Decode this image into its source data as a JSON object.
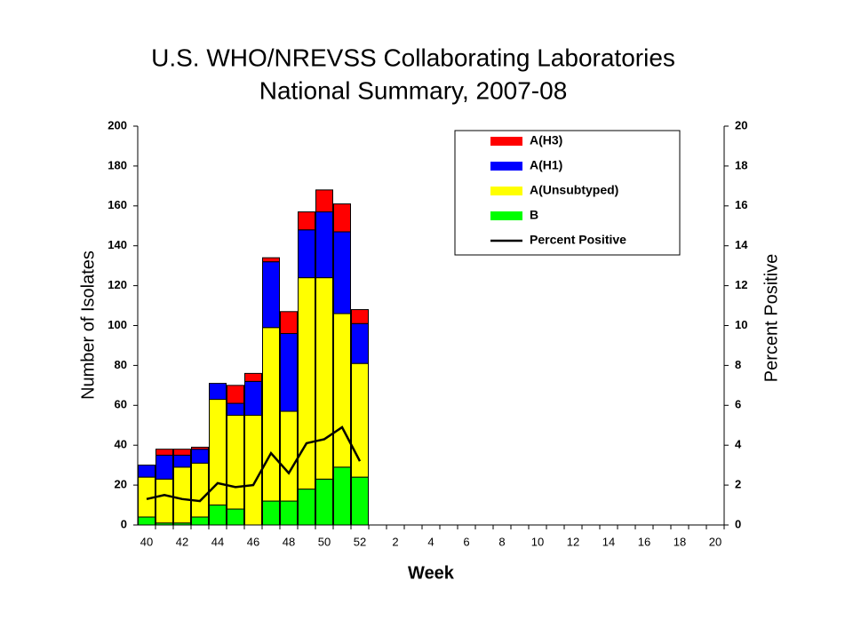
{
  "chart_data": {
    "type": "stacked-bar-line",
    "title": [
      "U.S. WHO/NREVSS Collaborating Laboratories",
      "National Summary, 2007-08"
    ],
    "x_label": "Week",
    "y_label": "Number of Isolates",
    "y2_label": "Percent Positive",
    "categories": [
      "40",
      null,
      "42",
      null,
      "44",
      null,
      "46",
      null,
      "48",
      null,
      "50",
      null,
      "52",
      null,
      "2",
      null,
      "4",
      null,
      "6",
      null,
      "8",
      null,
      "10",
      null,
      "12",
      null,
      "14",
      null,
      "16",
      null,
      "18",
      null,
      "20"
    ],
    "ylim": [
      0,
      200
    ],
    "yticks": [
      0,
      20,
      40,
      60,
      80,
      100,
      120,
      140,
      160,
      180,
      200
    ],
    "y2lim": [
      0,
      20
    ],
    "y2ticks": [
      0,
      2,
      4,
      6,
      8,
      10,
      12,
      14,
      16,
      18,
      20
    ],
    "series": [
      {
        "name": "A(H3)",
        "color": "#ff0000",
        "values": [
          0,
          3,
          3,
          1,
          0,
          9,
          4,
          2,
          11,
          9,
          11,
          14,
          7,
          null,
          null,
          null,
          null,
          null,
          null,
          null,
          null,
          null,
          null,
          null,
          null,
          null,
          null,
          null,
          null,
          null,
          null,
          null,
          null
        ]
      },
      {
        "name": "A(H1)",
        "color": "#0000ff",
        "values": [
          6,
          12,
          6,
          7,
          8,
          6,
          17,
          33,
          39,
          24,
          33,
          41,
          20,
          null,
          null,
          null,
          null,
          null,
          null,
          null,
          null,
          null,
          null,
          null,
          null,
          null,
          null,
          null,
          null,
          null,
          null,
          null,
          null
        ]
      },
      {
        "name": "A(Unsubtyped)",
        "color": "#ffff00",
        "values": [
          20,
          22,
          28,
          27,
          53,
          47,
          55,
          87,
          45,
          106,
          101,
          77,
          57,
          null,
          null,
          null,
          null,
          null,
          null,
          null,
          null,
          null,
          null,
          null,
          null,
          null,
          null,
          null,
          null,
          null,
          null,
          null,
          null
        ]
      },
      {
        "name": "B",
        "color": "#00ff00",
        "values": [
          4,
          1,
          1,
          4,
          10,
          8,
          0,
          12,
          12,
          18,
          23,
          29,
          24,
          null,
          null,
          null,
          null,
          null,
          null,
          null,
          null,
          null,
          null,
          null,
          null,
          null,
          null,
          null,
          null,
          null,
          null,
          null,
          null
        ]
      },
      {
        "name": "Percent Positive",
        "color": "#000000",
        "axis": "y2",
        "values": [
          1.3,
          1.5,
          1.3,
          1.2,
          2.1,
          1.9,
          2.0,
          3.6,
          2.6,
          4.1,
          4.3,
          4.9,
          3.2,
          null,
          null,
          null,
          null,
          null,
          null,
          null,
          null,
          null,
          null,
          null,
          null,
          null,
          null,
          null,
          null,
          null,
          null,
          null,
          null
        ]
      }
    ]
  }
}
